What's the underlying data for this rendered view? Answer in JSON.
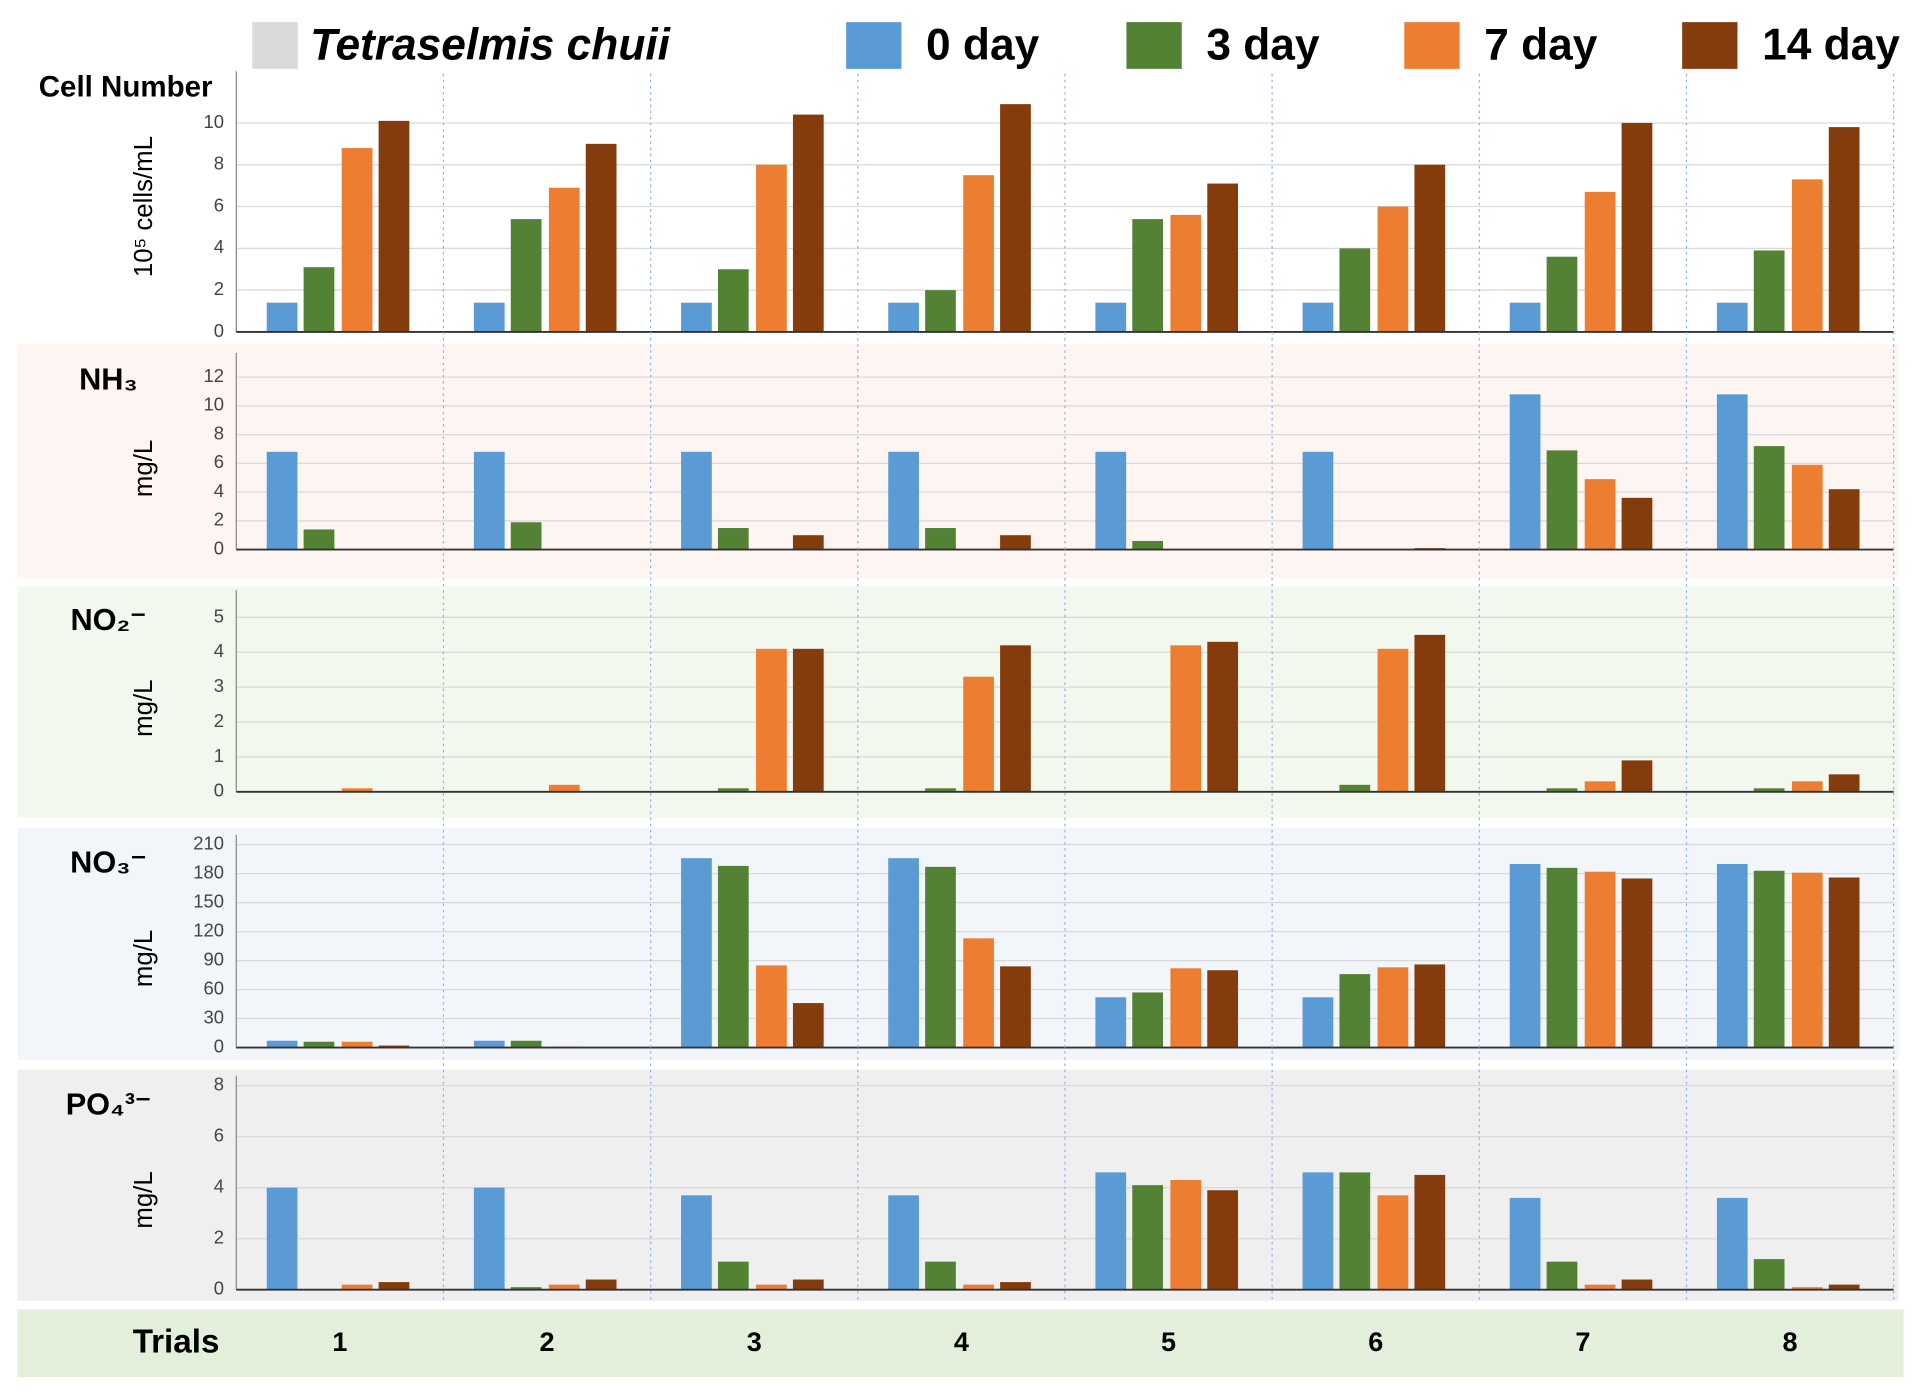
{
  "legend_species": {
    "label": "Tetraselmis chuii",
    "color": "#d9d9d9"
  },
  "chart_data": [
    {
      "type": "bar",
      "title": "Cell Number",
      "y_label": "10⁵ cells/mL",
      "background": "#ffffff",
      "ylim": [
        0,
        12
      ],
      "yticks": [
        0,
        2,
        4,
        6,
        8,
        10
      ],
      "grid": true,
      "series": [
        {
          "name": "0 day",
          "color": "#5b9bd5",
          "values": [
            1.4,
            1.4,
            1.4,
            1.4,
            1.4,
            1.4,
            1.4,
            1.4
          ]
        },
        {
          "name": "3 day",
          "color": "#548235",
          "values": [
            3.1,
            5.4,
            3.0,
            2.0,
            5.4,
            4.0,
            3.6,
            3.9
          ]
        },
        {
          "name": "7 day",
          "color": "#ed7d31",
          "values": [
            8.8,
            6.9,
            8.0,
            7.5,
            5.6,
            6.0,
            6.7,
            7.3
          ]
        },
        {
          "name": "14 day",
          "color": "#843c0c",
          "values": [
            10.1,
            9.0,
            10.4,
            10.9,
            7.1,
            8.0,
            10.0,
            9.8
          ]
        }
      ]
    },
    {
      "type": "bar",
      "title": "NH₃",
      "y_label": "mg/L",
      "background": "#fdf5f2",
      "ylim": [
        0,
        13
      ],
      "yticks": [
        0,
        2,
        4,
        6,
        8,
        10,
        12
      ],
      "grid": true,
      "series": [
        {
          "color": "#5b9bd5",
          "values": [
            6.8,
            6.8,
            6.8,
            6.8,
            6.8,
            6.8,
            10.8,
            10.8
          ]
        },
        {
          "color": "#548235",
          "values": [
            1.4,
            1.9,
            1.5,
            1.5,
            0.6,
            0,
            6.9,
            7.2
          ]
        },
        {
          "color": "#ed7d31",
          "values": [
            0,
            0,
            0,
            0,
            0,
            0,
            4.9,
            5.9
          ]
        },
        {
          "color": "#843c0c",
          "values": [
            0,
            0,
            1.0,
            1.0,
            0,
            0.1,
            3.6,
            4.2
          ]
        }
      ]
    },
    {
      "type": "bar",
      "title": "NO₂⁻",
      "y_label": "mg/L",
      "background": "#f3f8ee",
      "ylim": [
        0,
        5.5
      ],
      "yticks": [
        0,
        1,
        2,
        3,
        4,
        5
      ],
      "grid": true,
      "series": [
        {
          "color": "#5b9bd5",
          "values": [
            0,
            0,
            0,
            0,
            0,
            0,
            0,
            0
          ]
        },
        {
          "color": "#548235",
          "values": [
            0,
            0,
            0.1,
            0.1,
            0,
            0.2,
            0.1,
            0.1
          ]
        },
        {
          "color": "#ed7d31",
          "values": [
            0.1,
            0.2,
            4.1,
            3.3,
            4.2,
            4.1,
            0.3,
            0.3
          ]
        },
        {
          "color": "#843c0c",
          "values": [
            0,
            0,
            4.1,
            4.2,
            4.3,
            4.5,
            0.9,
            0.5
          ]
        }
      ]
    },
    {
      "type": "bar",
      "title": "NO₃⁻",
      "y_label": "mg/L",
      "background": "#f2f6fb",
      "ylim": [
        0,
        210
      ],
      "yticks": [
        0,
        30,
        60,
        90,
        120,
        150,
        180,
        210
      ],
      "grid": true,
      "series": [
        {
          "color": "#5b9bd5",
          "values": [
            7,
            7,
            196,
            196,
            52,
            52,
            190,
            190
          ]
        },
        {
          "color": "#548235",
          "values": [
            6,
            7,
            188,
            187,
            57,
            76,
            186,
            183
          ]
        },
        {
          "color": "#ed7d31",
          "values": [
            6,
            1,
            85,
            113,
            82,
            83,
            182,
            181
          ]
        },
        {
          "color": "#843c0c",
          "values": [
            2,
            0,
            46,
            84,
            80,
            86,
            175,
            176
          ]
        }
      ]
    },
    {
      "type": "bar",
      "title": "PO₄³⁻",
      "y_label": "mg/L",
      "background": "#efefef",
      "ylim": [
        0,
        8
      ],
      "yticks": [
        0,
        2,
        4,
        6,
        8
      ],
      "grid": true,
      "x_label": "Trials",
      "x_label_background": "#e2efda",
      "categories": [
        "1",
        "2",
        "3",
        "4",
        "5",
        "6",
        "7",
        "8"
      ],
      "series": [
        {
          "color": "#5b9bd5",
          "values": [
            4.0,
            4.0,
            3.7,
            3.7,
            4.6,
            4.6,
            3.6,
            3.6
          ]
        },
        {
          "color": "#548235",
          "values": [
            0,
            0.1,
            1.1,
            1.1,
            4.1,
            4.6,
            1.1,
            1.2
          ]
        },
        {
          "color": "#ed7d31",
          "values": [
            0.2,
            0.2,
            0.2,
            0.2,
            4.3,
            3.7,
            0.2,
            0.1
          ]
        },
        {
          "color": "#843c0c",
          "values": [
            0.3,
            0.4,
            0.4,
            0.3,
            3.9,
            4.5,
            0.4,
            0.2
          ]
        }
      ]
    }
  ]
}
